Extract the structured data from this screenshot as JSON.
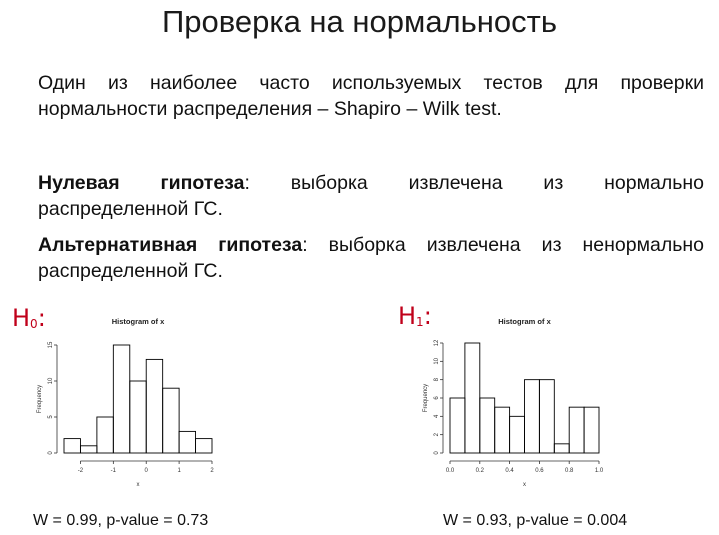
{
  "slide": {
    "title": "Проверка на нормальность",
    "intro_line1": "Один из наиболее часто используемых тестов для проверки",
    "intro_line2": "нормальности распределения – Shapiro – Wilk test.",
    "null_label": "Нулевая гипотеза",
    "null_line1_rest": ": выборка извлечена из нормально",
    "null_line2": "распределенной ГС.",
    "alt_label": "Альтернативная гипотеза",
    "alt_line1_rest": ": выборка извлечена из ненормально",
    "alt_line2": "распределенной ГС."
  },
  "annotations": {
    "h0_letter": "H",
    "h0_sub": "0",
    "h0_colon": ":",
    "h1_letter": "H",
    "h1_sub": "1",
    "h1_colon": ":"
  },
  "results": {
    "left": "W = 0.99, p-value = 0.73",
    "right": "W = 0.93, p-value = 0.004"
  },
  "colors": {
    "annotation": "#c0001a",
    "bars": "#000000"
  },
  "chart_data": [
    {
      "type": "bar",
      "title": "Histogram of x",
      "xlabel": "x",
      "ylabel": "Frequency",
      "bin_edges": [
        -2.5,
        -2.0,
        -1.5,
        -1.0,
        -0.5,
        0.0,
        0.5,
        1.0,
        1.5,
        2.0
      ],
      "values": [
        2,
        1,
        5,
        15,
        10,
        13,
        9,
        3,
        2
      ],
      "xlim": [
        -2.5,
        2.0
      ],
      "ylim": [
        0,
        15
      ],
      "xticks": [
        -2,
        -1,
        0,
        1,
        2
      ],
      "yticks": [
        0,
        5,
        10,
        15
      ]
    },
    {
      "type": "bar",
      "title": "Histogram of x",
      "xlabel": "x",
      "ylabel": "Frequency",
      "bin_edges": [
        0.0,
        0.1,
        0.2,
        0.3,
        0.4,
        0.5,
        0.6,
        0.7,
        0.8,
        0.9,
        1.0
      ],
      "values": [
        6,
        12,
        6,
        5,
        4,
        8,
        8,
        1,
        5,
        5
      ],
      "xlim": [
        0.0,
        1.0
      ],
      "ylim": [
        0,
        12
      ],
      "xticks": [
        0.0,
        0.2,
        0.4,
        0.6,
        0.8,
        1.0
      ],
      "yticks": [
        0,
        2,
        4,
        6,
        8,
        10,
        12
      ]
    }
  ]
}
